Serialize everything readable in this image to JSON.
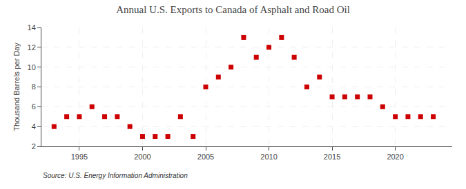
{
  "chart_data": {
    "type": "scatter",
    "title": "Annual U.S. Exports to Canada of Asphalt and Road Oil",
    "ylabel": "Thousand Barrels per Day",
    "annotations": [
      "Source: U.S. Energy Information Administration"
    ],
    "x": [
      1993,
      1994,
      1995,
      1996,
      1997,
      1998,
      1999,
      2000,
      2001,
      2002,
      2003,
      2004,
      2005,
      2006,
      2007,
      2008,
      2009,
      2010,
      2011,
      2012,
      2013,
      2014,
      2015,
      2016,
      2017,
      2018,
      2019,
      2020,
      2021,
      2022,
      2023
    ],
    "values": [
      4,
      5,
      5,
      6,
      5,
      5,
      4,
      3,
      3,
      3,
      5,
      3,
      8,
      9,
      10,
      13,
      11,
      12,
      13,
      11,
      8,
      9,
      7,
      7,
      7,
      7,
      6,
      5,
      5,
      5,
      5
    ],
    "color": "#cc0000",
    "marker": "square",
    "xlim": [
      1992,
      2024.5
    ],
    "ylim": [
      2,
      14
    ],
    "xticks": [
      1995,
      2000,
      2005,
      2010,
      2015,
      2020
    ],
    "yticks": [
      2,
      4,
      6,
      8,
      10,
      12,
      14
    ],
    "grid": true
  }
}
